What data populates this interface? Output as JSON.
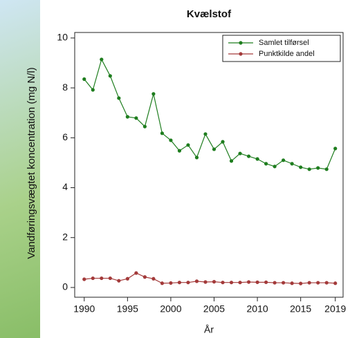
{
  "chart_data": {
    "type": "line",
    "title": "Kvælstof",
    "xlabel": "År",
    "ylabel": "Vandføringsvægtet koncentration (mg N/l)",
    "x": [
      1990,
      1991,
      1992,
      1993,
      1994,
      1995,
      1996,
      1997,
      1998,
      1999,
      2000,
      2001,
      2002,
      2003,
      2004,
      2005,
      2006,
      2007,
      2008,
      2009,
      2010,
      2011,
      2012,
      2013,
      2014,
      2015,
      2016,
      2017,
      2018,
      2019
    ],
    "series": [
      {
        "name": "Samlet tilførsel",
        "color": "#1e7d1e",
        "values": [
          8.35,
          7.92,
          9.14,
          8.48,
          7.59,
          6.84,
          6.79,
          6.45,
          7.76,
          6.18,
          5.9,
          5.48,
          5.71,
          5.21,
          6.15,
          5.54,
          5.84,
          5.07,
          5.37,
          5.26,
          5.15,
          4.96,
          4.85,
          5.1,
          4.96,
          4.82,
          4.74,
          4.79,
          4.74,
          5.57
        ]
      },
      {
        "name": "Punktkilde andel",
        "color": "#a33a3a",
        "values": [
          0.33,
          0.37,
          0.37,
          0.37,
          0.27,
          0.35,
          0.58,
          0.42,
          0.35,
          0.17,
          0.18,
          0.2,
          0.2,
          0.25,
          0.22,
          0.23,
          0.2,
          0.2,
          0.2,
          0.22,
          0.21,
          0.21,
          0.19,
          0.19,
          0.17,
          0.16,
          0.19,
          0.19,
          0.19,
          0.17
        ]
      }
    ],
    "xlim": [
      1988.9,
      2019.9
    ],
    "ylim": [
      -0.39,
      10.22
    ],
    "xticks": [
      1990,
      1995,
      2000,
      2005,
      2010,
      2015,
      2019
    ],
    "yticks": [
      0,
      2,
      4,
      6,
      8,
      10
    ],
    "legend": "top-right"
  }
}
